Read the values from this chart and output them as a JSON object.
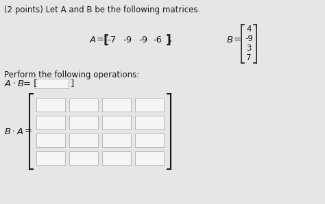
{
  "title": "(2 points) Let A and B be the following matrices.",
  "A_values": [
    "-7",
    "-9",
    "-9",
    "-6"
  ],
  "B_values": [
    "4",
    "-9",
    "3",
    "7"
  ],
  "perform_text": "Perform the following operations:",
  "BA_rows": 4,
  "BA_cols": 4,
  "bg_color": "#e6e6e6",
  "box_color": "#f5f5f5",
  "box_edge_color": "#bbbbbb",
  "text_color": "#1a1a1a",
  "title_fontsize": 8.5,
  "body_fontsize": 8.5,
  "math_fontsize": 9.5
}
